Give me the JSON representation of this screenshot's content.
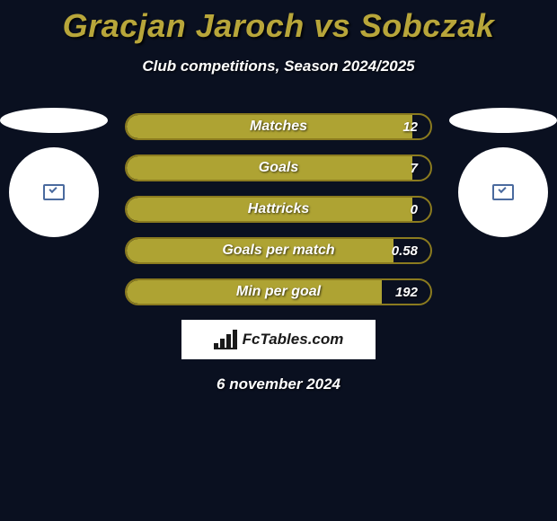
{
  "title_parts": {
    "p1": "Gracjan Jaroch",
    "vs": " vs ",
    "p2": "Sobczak"
  },
  "title_color": "#b8a63a",
  "subtitle": "Club competitions, Season 2024/2025",
  "background": "#0a1020",
  "logo_colors": {
    "left": "#4a6a9e",
    "right": "#4a6a9e"
  },
  "bar_style": {
    "border_color": "#8b7b1f",
    "fill_color": "#aea333"
  },
  "stats": [
    {
      "label": "Matches",
      "value": "12",
      "fill_pct": 94
    },
    {
      "label": "Goals",
      "value": "7",
      "fill_pct": 94
    },
    {
      "label": "Hattricks",
      "value": "0",
      "fill_pct": 94
    },
    {
      "label": "Goals per match",
      "value": "0.58",
      "fill_pct": 88
    },
    {
      "label": "Min per goal",
      "value": "192",
      "fill_pct": 84
    }
  ],
  "footer_brand": "FcTables.com",
  "date": "6 november 2024"
}
